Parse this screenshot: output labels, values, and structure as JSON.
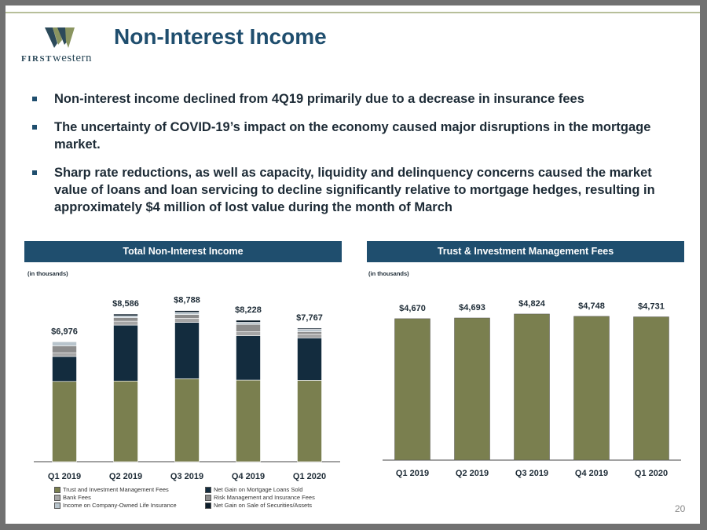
{
  "header": {
    "title": "Non-Interest Income",
    "logo_first": "FIRST",
    "logo_rest": "western"
  },
  "bullets": [
    "Non-interest income declined from 4Q19 primarily due to a decrease in insurance fees",
    "The uncertainty of COVID-19’s impact on the economy caused major disruptions in the mortgage market.",
    "Sharp rate reductions, as well as capacity, liquidity and delinquency concerns caused the market value of loans and loan servicing to decline significantly relative to mortgage hedges, resulting in approximately $4 million of lost value during the month of March"
  ],
  "page_number": "20",
  "colors": {
    "brand": "#1f4e6e",
    "trust": "#7a7f4f",
    "mortgage": "#132c3e",
    "bank": "#a6a6a6",
    "risk": "#8c8c8c",
    "boli": "#b8c4cc",
    "securities": "#0d1e2b"
  },
  "chart_data": [
    {
      "type": "bar",
      "stacked": true,
      "title": "Total Non-Interest Income",
      "units_note": "(in thousands)",
      "categories": [
        "Q1 2019",
        "Q2 2019",
        "Q3 2019",
        "Q4 2019",
        "Q1 2020"
      ],
      "totals": [
        "$6,976",
        "$8,586",
        "$8,788",
        "$8,228",
        "$7,767"
      ],
      "total_values": [
        6976,
        8586,
        8788,
        8228,
        7767
      ],
      "ylim": [
        0,
        9500
      ],
      "grid": false,
      "legend_position": "bottom",
      "series": [
        {
          "name": "Trust and Investment Management Fees",
          "color_key": "trust",
          "values": [
            4670,
            4693,
            4824,
            4748,
            4731
          ]
        },
        {
          "name": "Net Gain on Mortgage Loans Sold",
          "color_key": "mortgage",
          "values": [
            1450,
            3250,
            3280,
            2580,
            2470
          ]
        },
        {
          "name": "Bank Fees",
          "color_key": "bank",
          "values": [
            220,
            230,
            240,
            240,
            230
          ]
        },
        {
          "name": "Risk Management and Insurance Fees",
          "color_key": "risk",
          "values": [
            400,
            200,
            220,
            420,
            130
          ]
        },
        {
          "name": "Income on Company-Owned Life Insurance",
          "color_key": "boli",
          "values": [
            236,
            113,
            124,
            120,
            136
          ]
        },
        {
          "name": "Net Gain on Sale of Securities/Assets",
          "color_key": "securities",
          "values": [
            0,
            100,
            100,
            120,
            70
          ]
        }
      ]
    },
    {
      "type": "bar",
      "title": "Trust & Investment Management Fees",
      "units_note": "(in thousands)",
      "categories": [
        "Q1 2019",
        "Q2 2019",
        "Q3 2019",
        "Q4 2019",
        "Q1 2020"
      ],
      "labels": [
        "$4,670",
        "$4,693",
        "$4,824",
        "$4,748",
        "$4,731"
      ],
      "values": [
        4670,
        4693,
        4824,
        4748,
        4731
      ],
      "ylim": [
        0,
        5600
      ],
      "grid": false,
      "series": [
        {
          "color_key": "trust",
          "values": [
            4670,
            4693,
            4824,
            4748,
            4731
          ]
        }
      ]
    }
  ]
}
